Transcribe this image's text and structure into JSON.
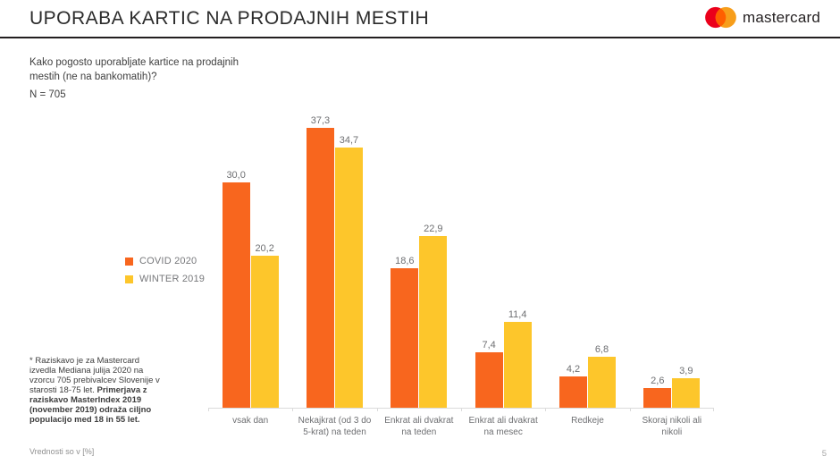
{
  "header": {
    "title": "UPORABA KARTIC NA PRODAJNIH MESTIH",
    "logo_text": "mastercard"
  },
  "brand_colors": {
    "logo_red": "#EB001B",
    "logo_orange": "#F79E1B",
    "logo_overlap": "#FF5F00",
    "series_orange": "#F8661E",
    "series_yellow": "#FDC62B"
  },
  "question": {
    "text": "Kako pogosto uporabljate kartice na prodajnih mestih (ne na bankomatih)?",
    "sample_size": "N = 705"
  },
  "footnote": {
    "regular": "* Raziskavo je za Mastercard izvedla Mediana julija 2020 na vzorcu 705 prebivalcev Slovenije v starosti 18-75 let. ",
    "bold": "Primerjava z raziskavo MasterIndex 2019 (november 2019) odraža ciljno populacijo med 18 in 55 let."
  },
  "footer": {
    "values_note": "Vrednosti so v [%]",
    "page_number": "5"
  },
  "chart_data": {
    "type": "bar",
    "title": "",
    "xlabel": "",
    "ylabel": "",
    "unit": "%",
    "ylim": [
      0,
      40
    ],
    "grid": false,
    "legend_position": "left",
    "value_label_format": "decimal-comma",
    "categories": [
      "vsak dan",
      "Nekajkrat (od 3 do 5-krat) na teden",
      "Enkrat ali dvakrat na teden",
      "Enkrat ali dvakrat na mesec",
      "Redkeje",
      "Skoraj nikoli ali nikoli"
    ],
    "series": [
      {
        "name": "COVID 2020",
        "color": "#F8661E",
        "values": [
          30.0,
          37.3,
          18.6,
          7.4,
          4.2,
          2.6
        ]
      },
      {
        "name": "WINTER 2019",
        "color": "#FDC62B",
        "values": [
          20.2,
          34.7,
          22.9,
          11.4,
          6.8,
          3.9
        ]
      }
    ]
  }
}
